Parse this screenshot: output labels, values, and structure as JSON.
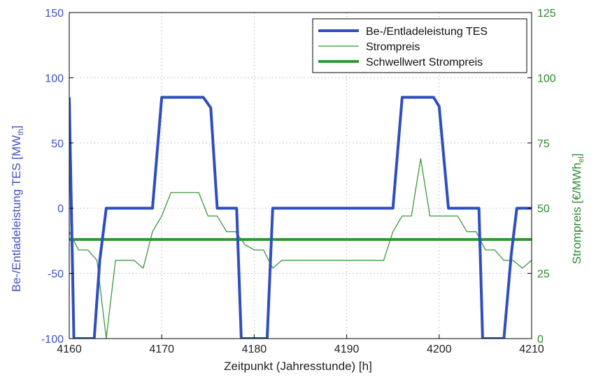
{
  "chart_data": {
    "type": "line",
    "xlabel": "Zeitpunkt (Jahresstunde) [h]",
    "xlim": [
      4160,
      4210
    ],
    "xticks": [
      4160,
      4170,
      4180,
      4190,
      4200,
      4210
    ],
    "grid": true,
    "legend_position": "top-right",
    "left_axis": {
      "label": "Be-/Entladeleistung TES [MW",
      "label_sub": "th",
      "label_suffix": "]",
      "ylim": [
        -100,
        150
      ],
      "ticks": [
        -100,
        -50,
        0,
        50,
        100,
        150
      ],
      "color": "#3f51c4"
    },
    "right_axis": {
      "label": "Strompreis [€/MWh",
      "label_sub": "el",
      "label_suffix": "]",
      "ylim": [
        0,
        125
      ],
      "ticks": [
        0,
        25,
        50,
        75,
        100,
        125
      ],
      "color": "#2e8b2e"
    },
    "series": [
      {
        "name": "Be-/Entladeleistung TES",
        "axis": "left",
        "color": "#2f4fbf",
        "width": 4,
        "x": [
          4160,
          4160.5,
          4162.7,
          4163.3,
          4164,
          4169,
          4170,
          4174.5,
          4175.3,
          4176,
          4178.1,
          4178.6,
          4181.4,
          4182,
          4195,
          4196,
          4199.4,
          4200,
          4201,
          4204.3,
          4204.7,
          4207,
          4207.8,
          4208.4,
          4210
        ],
        "y": [
          85,
          -100,
          -100,
          -40,
          0,
          0,
          85,
          85,
          77,
          0,
          0,
          -100,
          -100,
          0,
          0,
          85,
          85,
          78,
          0,
          0,
          -100,
          -100,
          -35,
          0,
          0
        ]
      },
      {
        "name": "Strompreis",
        "axis": "right",
        "color": "#3a9a3a",
        "width": 1.3,
        "x": [
          4160,
          4161,
          4162,
          4163,
          4164,
          4165,
          4166,
          4167,
          4168,
          4169,
          4170,
          4171,
          4172,
          4173,
          4174,
          4175,
          4176,
          4177,
          4178,
          4179,
          4180,
          4181,
          4182,
          4183,
          4184,
          4185,
          4186,
          4187,
          4188,
          4189,
          4190,
          4191,
          4192,
          4193,
          4194,
          4195,
          4196,
          4197,
          4198,
          4199,
          4200,
          4201,
          4202,
          4203,
          4204,
          4205,
          4206,
          4207,
          4208,
          4209,
          4210
        ],
        "y": [
          41,
          34,
          34,
          30,
          0,
          30,
          30,
          30,
          27,
          41,
          47,
          56,
          56,
          56,
          56,
          47,
          47,
          41,
          41,
          36,
          34,
          34,
          27,
          30,
          30,
          30,
          30,
          30,
          30,
          30,
          30,
          30,
          30,
          30,
          30,
          41,
          47,
          47,
          69,
          47,
          47,
          47,
          47,
          41,
          41,
          34,
          34,
          30,
          30,
          27,
          30
        ]
      },
      {
        "name": "Schwellwert Strompreis",
        "axis": "right",
        "color": "#2e9a2e",
        "width": 4,
        "x": [
          4160,
          4210
        ],
        "y": [
          38,
          38
        ]
      }
    ]
  }
}
